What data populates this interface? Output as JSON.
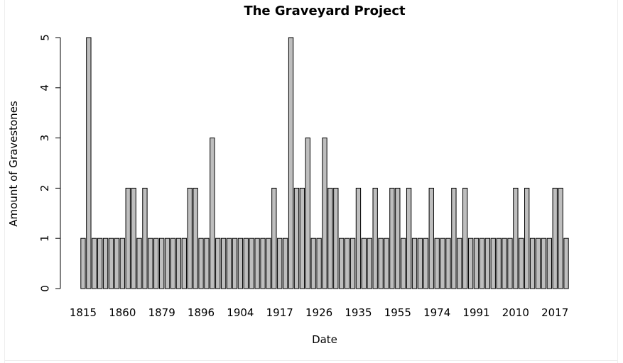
{
  "chart_data": {
    "type": "bar",
    "title": "The Graveyard Project",
    "xlabel": "Date",
    "ylabel": "Amount of Gravestones",
    "ylim": [
      0,
      5
    ],
    "yticks": [
      0,
      1,
      2,
      3,
      4,
      5
    ],
    "visible_xtick_labels": [
      "1815",
      "1860",
      "1879",
      "1896",
      "1904",
      "1917",
      "1926",
      "1935",
      "1955",
      "1974",
      "1991",
      "2010",
      "2017"
    ],
    "values": [
      1,
      5,
      1,
      1,
      1,
      1,
      1,
      1,
      2,
      2,
      1,
      2,
      1,
      1,
      1,
      1,
      1,
      1,
      1,
      2,
      2,
      1,
      1,
      3,
      1,
      1,
      1,
      1,
      1,
      1,
      1,
      1,
      1,
      1,
      2,
      1,
      1,
      5,
      2,
      2,
      3,
      1,
      1,
      3,
      2,
      2,
      1,
      1,
      1,
      2,
      1,
      1,
      2,
      1,
      1,
      2,
      2,
      1,
      2,
      1,
      1,
      1,
      2,
      1,
      1,
      1,
      2,
      1,
      2,
      1,
      1,
      1,
      1,
      1,
      1,
      1,
      1,
      2,
      1,
      2,
      1,
      1,
      1,
      1,
      2,
      2,
      1
    ],
    "bar_fill": "#bebebe",
    "bar_stroke": "#000000",
    "grid": false,
    "legend": "none"
  }
}
